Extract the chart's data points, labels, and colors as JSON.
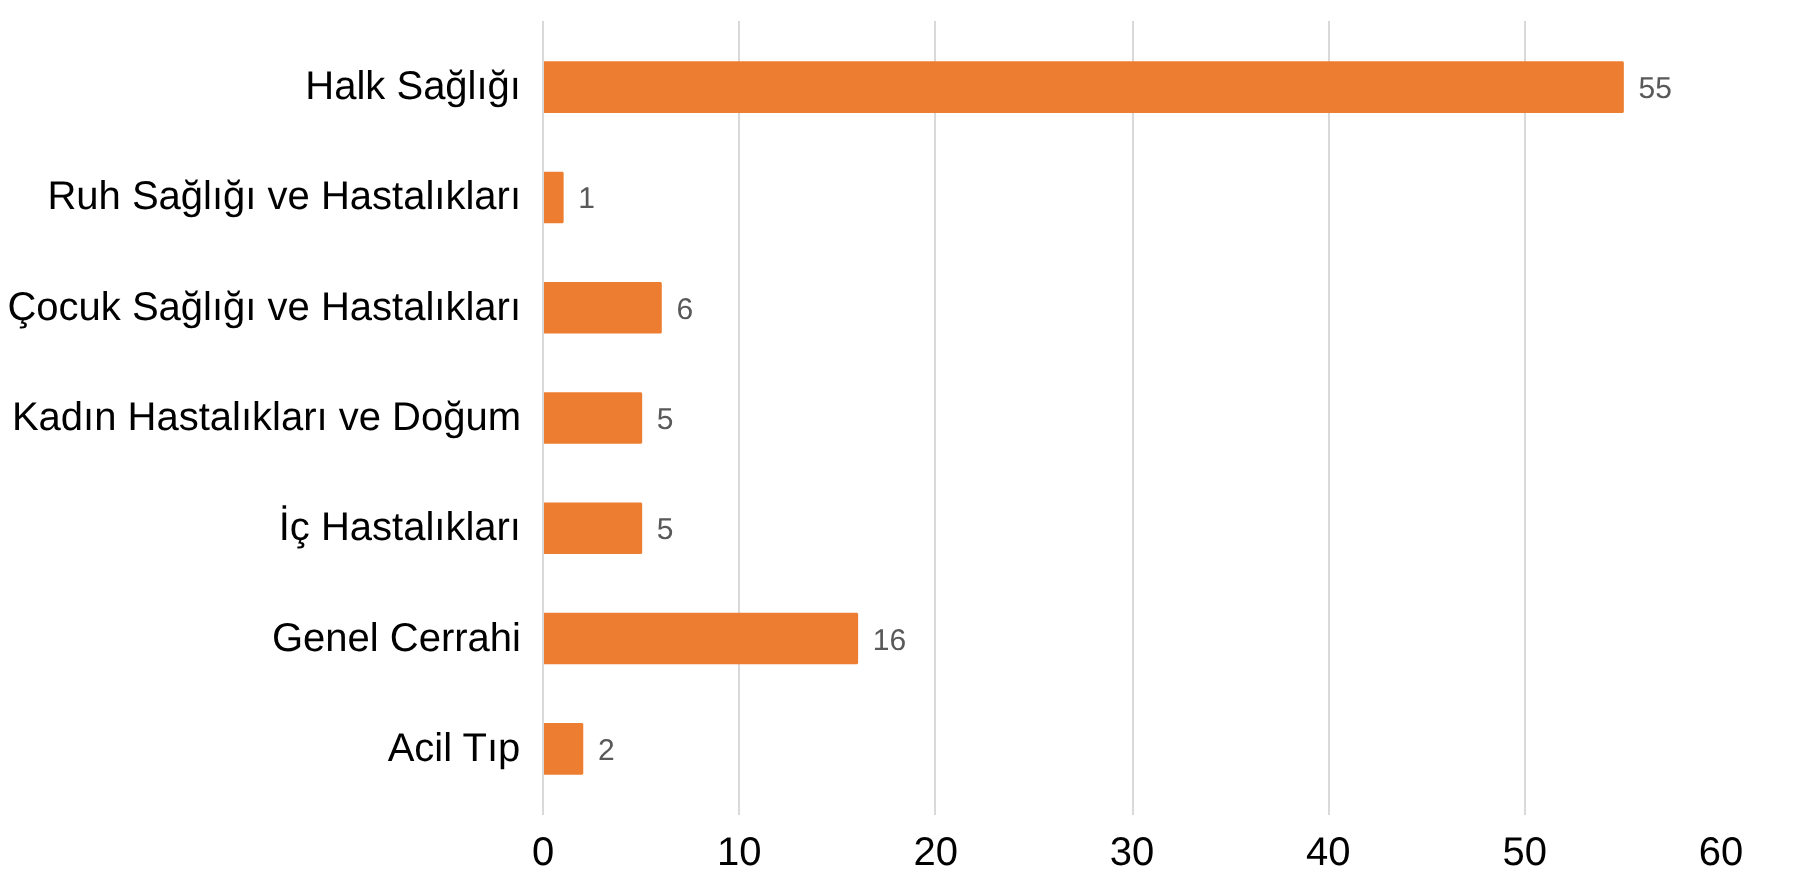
{
  "chart_data": {
    "type": "bar",
    "orientation": "horizontal",
    "categories": [
      "Halk Sağlığı",
      "Ruh Sağlığı ve Hastalıkları",
      "Çocuk Sağlığı ve Hastalıkları",
      "Kadın Hastalıkları ve Doğum",
      "İç Hastalıkları",
      "Genel Cerrahi",
      "Acil Tıp"
    ],
    "values": [
      55,
      1,
      6,
      5,
      5,
      16,
      2
    ],
    "color": "#ed7d31",
    "xlim": [
      0,
      60
    ],
    "xticks": [
      0,
      10,
      20,
      30,
      40,
      50,
      60
    ],
    "grid": "x",
    "data_labels": true
  }
}
